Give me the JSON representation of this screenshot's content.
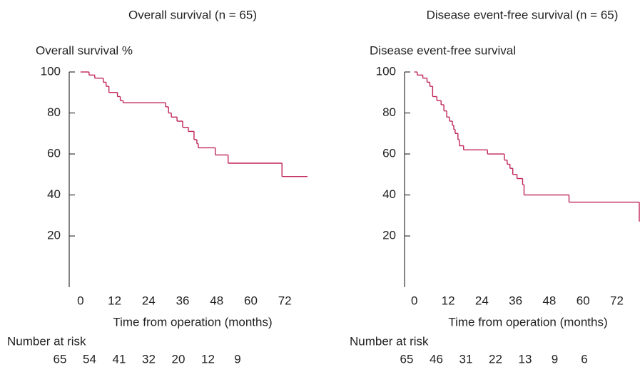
{
  "chart_data": [
    {
      "type": "step",
      "title": "Overall survival (n = 65)",
      "y_label": "Overall survival %",
      "x_label": "Time from operation (months)",
      "x": [
        0,
        3,
        5,
        8,
        9,
        10,
        13,
        14,
        15,
        30,
        31,
        32,
        34,
        36,
        38,
        40,
        41,
        41.5,
        47.5,
        52,
        71,
        80
      ],
      "values": [
        100,
        98.5,
        97,
        95,
        93,
        90,
        88,
        86,
        85,
        83,
        80,
        78,
        76,
        73,
        71,
        67,
        65,
        63,
        59.5,
        55.5,
        49,
        49
      ],
      "color": "#c0245a",
      "xlim": [
        -4,
        80
      ],
      "ylim": [
        -5,
        100
      ],
      "xticks": [
        0,
        12,
        24,
        36,
        48,
        60,
        72
      ],
      "yticks": [
        20,
        40,
        60,
        80,
        100
      ],
      "risk_label": "Number at risk",
      "at_risk": [
        65,
        54,
        41,
        32,
        20,
        12,
        9
      ]
    },
    {
      "type": "step",
      "title": "Disease event-free survival (n = 65)",
      "y_label": "Disease event-free survival",
      "x_label": "Time from operation (months)",
      "x": [
        0,
        1,
        3,
        4.5,
        5.5,
        6.5,
        8,
        9.5,
        10.5,
        11.5,
        12.5,
        13.5,
        14,
        14.5,
        15.5,
        16,
        17.5,
        26,
        32,
        33,
        34,
        35,
        36.5,
        38.5,
        39,
        55,
        80
      ],
      "values": [
        100,
        98.5,
        97,
        95,
        93,
        88,
        86,
        84,
        81,
        78,
        76,
        74,
        72,
        70,
        67,
        64,
        62,
        60,
        57,
        55,
        53,
        50,
        48,
        45,
        40,
        36.5,
        27
      ],
      "color": "#c0245a",
      "xlim": [
        -3.5,
        80
      ],
      "ylim": [
        -5,
        100
      ],
      "xticks": [
        0,
        12,
        24,
        36,
        48,
        60,
        72
      ],
      "yticks": [
        20,
        40,
        60,
        80,
        100
      ],
      "risk_label": "Number at risk",
      "at_risk": [
        65,
        46,
        31,
        22,
        13,
        9,
        6
      ]
    }
  ]
}
